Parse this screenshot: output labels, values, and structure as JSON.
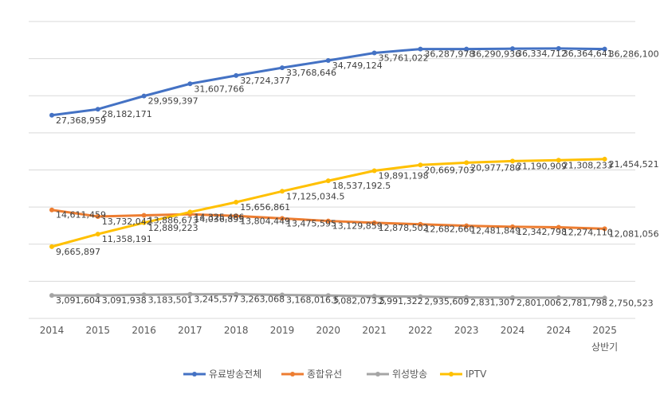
{
  "chart_data": {
    "type": "line",
    "categories": [
      "2014",
      "2015",
      "2016",
      "2017",
      "2018",
      "2019",
      "2020",
      "2021",
      "2022",
      "2023",
      "2024",
      "2024",
      "2025"
    ],
    "category_sublabels": [
      "",
      "",
      "",
      "",
      "",
      "",
      "",
      "",
      "",
      "",
      "",
      "",
      "상반기"
    ],
    "ylim": [
      0,
      40000000
    ],
    "grid": true,
    "legend_position": "bottom",
    "series": [
      {
        "name": "유료방송전체",
        "color": "#4472C4",
        "values": [
          27368959,
          28182171,
          29959397,
          31607766,
          32724377,
          33768646,
          34749124,
          35761022,
          36287978,
          36290936,
          36334712,
          36364641,
          36286100
        ],
        "labels": [
          "27,368,959",
          "28,182,171",
          "29,959,397",
          "31,607,766",
          "32,724,377",
          "33,768,646",
          "34,749,124",
          "35,761,022",
          "36,287,978",
          "36,290,936",
          "36,334,712",
          "36,364,641",
          "36,286,100"
        ]
      },
      {
        "name": "종합유선",
        "color": "#ED7D31",
        "values": [
          14611459,
          13732042,
          13886673,
          14036895,
          13804449,
          13475595,
          13129859,
          12878502,
          12682660,
          12481849,
          12342798,
          12274110,
          12081056
        ],
        "labels": [
          "14,611,459",
          "13,732,042",
          "13,886,673",
          "14,036,895",
          "13,804,449",
          "13,475,595",
          "13,129,859",
          "12,878,502",
          "12,682,660",
          "12,481,849",
          "12,342,798",
          "12,274,110",
          "12,081,056"
        ]
      },
      {
        "name": "위성방송",
        "color": "#A5A5A5",
        "values": [
          3091604,
          3091938,
          3183501,
          3245577,
          3263068,
          3168016.5,
          3082073.5,
          2991322,
          2935609,
          2831307,
          2801006,
          2781798,
          2750523
        ],
        "labels": [
          "3,091,604",
          "3,091,938",
          "3,183,501",
          "3,245,577",
          "3,263,068",
          "3,168,016.5",
          "3,082,073.5",
          "2,991,322",
          "2,935,609",
          "2,831,307",
          "2,801,006",
          "2,781,798",
          "2,750,523"
        ]
      },
      {
        "name": "IPTV",
        "color": "#FFC000",
        "values": [
          9665897,
          11358191,
          12889223,
          14325486,
          15656861,
          17125034.5,
          18537192.5,
          19891198,
          20669703,
          20977780,
          21190909,
          21308233,
          21454521
        ],
        "labels": [
          "9,665,897",
          "11,358,191",
          "12,889,223",
          "14,325,486",
          "15,656,861",
          "17,125,034.5",
          "18,537,192.5",
          "19,891,198",
          "20,669,703",
          "20,977,780",
          "21,190,909",
          "21,308,233",
          "21,454,521"
        ]
      }
    ]
  }
}
